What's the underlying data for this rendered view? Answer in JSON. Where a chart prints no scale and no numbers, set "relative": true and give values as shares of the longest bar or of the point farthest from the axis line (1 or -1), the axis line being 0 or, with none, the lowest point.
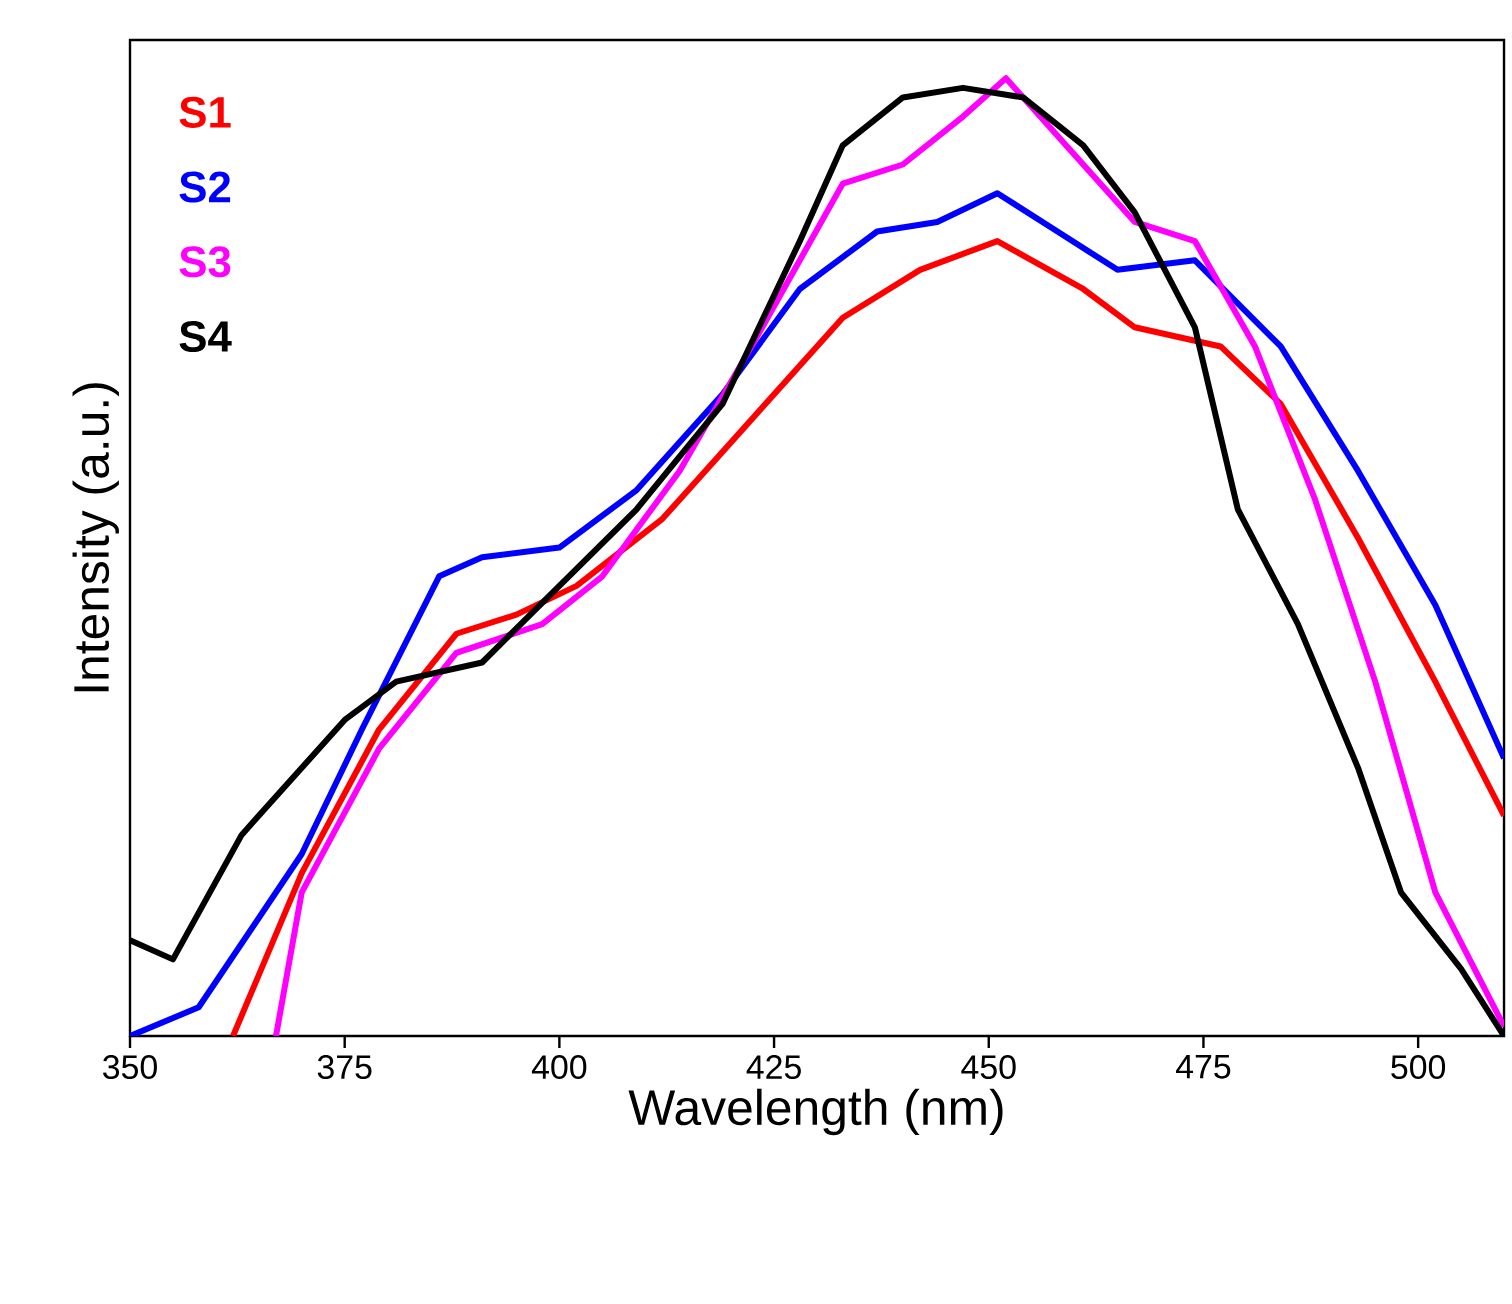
{
  "chart_data": {
    "type": "line",
    "xlabel": "Wavelength (nm)",
    "ylabel": "Intensity (a.u.)",
    "relative": true,
    "xlim": [
      350,
      510
    ],
    "xticks": [
      350,
      375,
      400,
      425,
      450,
      475,
      500
    ],
    "legend": "top left",
    "grid": false,
    "marker": "none",
    "line_style": "solid",
    "series": [
      {
        "name": "S1",
        "color": "#ff0000",
        "x": [
          362,
          370,
          379,
          388,
          395,
          402,
          412,
          423,
          433,
          442,
          451,
          461,
          467,
          477,
          484,
          493,
          502,
          510
        ],
        "values": [
          0,
          0.17,
          0.32,
          0.42,
          0.44,
          0.47,
          0.54,
          0.65,
          0.75,
          0.8,
          0.83,
          0.78,
          0.74,
          0.72,
          0.66,
          0.52,
          0.37,
          0.23
        ]
      },
      {
        "name": "S2",
        "color": "#0000ff",
        "x": [
          350,
          358,
          370,
          377,
          386,
          391,
          400,
          409,
          419,
          428,
          437,
          444,
          451,
          458,
          465,
          474,
          484,
          493,
          502,
          510
        ],
        "values": [
          0,
          0.03,
          0.19,
          0.32,
          0.48,
          0.5,
          0.51,
          0.57,
          0.67,
          0.78,
          0.84,
          0.85,
          0.88,
          0.84,
          0.8,
          0.81,
          0.72,
          0.59,
          0.45,
          0.29
        ]
      },
      {
        "name": "S3",
        "color": "#ff00ff",
        "x": [
          367,
          370,
          379,
          388,
          398,
          405,
          414,
          423,
          433,
          440,
          447,
          452,
          461,
          467,
          474,
          481,
          488,
          495,
          502,
          510
        ],
        "values": [
          0,
          0.15,
          0.3,
          0.4,
          0.43,
          0.48,
          0.59,
          0.73,
          0.89,
          0.91,
          0.96,
          1.0,
          0.91,
          0.85,
          0.83,
          0.72,
          0.56,
          0.37,
          0.15,
          0.01
        ]
      },
      {
        "name": "S4",
        "color": "#000000",
        "x": [
          350,
          355,
          363,
          375,
          381,
          391,
          400,
          409,
          419,
          428,
          433,
          440,
          447,
          454,
          461,
          467,
          474,
          479,
          486,
          493,
          498,
          505,
          510
        ],
        "values": [
          0.1,
          0.08,
          0.21,
          0.33,
          0.37,
          0.39,
          0.47,
          0.55,
          0.66,
          0.83,
          0.93,
          0.98,
          0.99,
          0.98,
          0.93,
          0.86,
          0.74,
          0.55,
          0.43,
          0.28,
          0.15,
          0.07,
          0
        ]
      }
    ]
  }
}
